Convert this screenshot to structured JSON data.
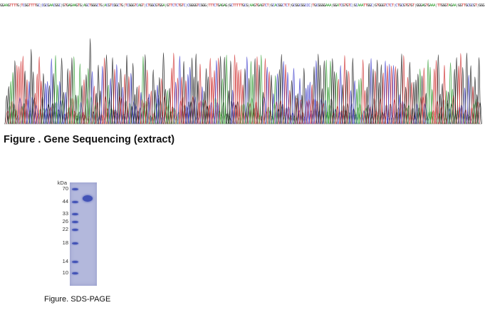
{
  "sequencing": {
    "caption": "Figure . Gene Sequencing (extract)",
    "bases": "GGAAGTTTTGTCGGTTTTGCCGCGAACGGCGTGAGAAGTGAGCTGGGCTGACGTCGGCTGTCGGGTCAGTCTGGCGTGGAGTTCTCTGTCCGGGGTCGGGTTTCTGAGAGGCTTTTTGCGAAGTGAGTCTGCACGGCTCTGCGGCGGCCCTGCGGGGAAAGGATCGTGTCGCAAATTGGCGTGGGTCTCTCTGCGTGTGTGGGAGTGAAATTGGGTAGAAGGTTGCGCGTGGG",
    "channel_colors": {
      "A": "#2c9b2c",
      "C": "#2e2ec7",
      "G": "#111111",
      "T": "#cc2222"
    }
  },
  "sds_page": {
    "caption": "Figure. SDS-PAGE",
    "unit": "kDa",
    "ladder": [
      "70",
      "44",
      "33",
      "26",
      "22",
      "18",
      "14",
      "10"
    ],
    "band_color": "#4353b6"
  }
}
